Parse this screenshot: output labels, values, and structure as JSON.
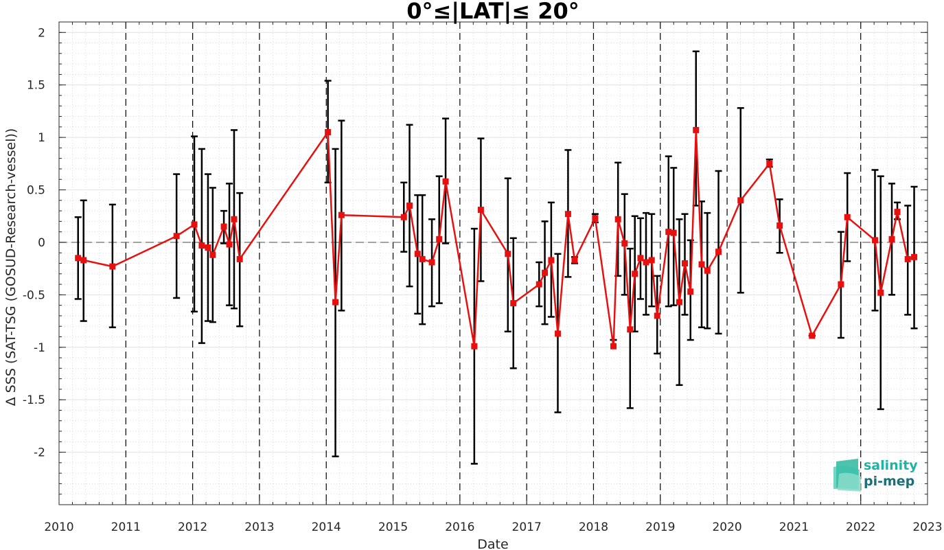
{
  "chart_data": {
    "type": "line",
    "title": "0°≤|LAT|≤ 20°",
    "xlabel": "Date",
    "ylabel": "Δ SSS (SAT-TSG (GOSUD-Research-vessel))",
    "xlim": [
      "2010",
      "2023"
    ],
    "ylim": [
      -2.5,
      2.1
    ],
    "x_ticks": [
      "2010",
      "2011",
      "2012",
      "2013",
      "2014",
      "2015",
      "2016",
      "2017",
      "2018",
      "2019",
      "2020",
      "2021",
      "2022",
      "2023"
    ],
    "y_ticks": [
      "-2",
      "-1.5",
      "-1",
      "-0.5",
      "0",
      "0.5",
      "1",
      "1.5",
      "2"
    ],
    "grid": "minor dotted grid on both axes",
    "year_boundaries": "dashed vertical lines at each year start",
    "zero_line": "dashed horizontal line at 0",
    "series": [
      {
        "color": "#e8100f",
        "marker": "square",
        "error_bar_color": "#000000",
        "x": [
          "2010-04-15",
          "2010-05-15",
          "2010-10-20",
          "2011-10-05",
          "2012-01-10",
          "2012-02-20",
          "2012-03-25",
          "2012-04-20",
          "2012-06-20",
          "2012-07-20",
          "2012-08-15",
          "2012-09-15",
          "2014-01-10",
          "2014-02-20",
          "2014-03-25",
          "2015-03-01",
          "2015-04-01",
          "2015-05-15",
          "2015-06-10",
          "2015-08-01",
          "2015-09-10",
          "2015-10-15",
          "2016-03-20",
          "2016-04-25",
          "2016-09-20",
          "2016-10-20",
          "2017-03-10",
          "2017-04-10",
          "2017-05-15",
          "2017-06-20",
          "2017-08-15",
          "2017-09-20",
          "2018-01-10",
          "2018-04-20",
          "2018-05-15",
          "2018-06-20",
          "2018-07-20",
          "2018-08-15",
          "2018-09-15",
          "2018-10-15",
          "2018-11-15",
          "2018-12-15",
          "2019-02-15",
          "2019-03-15",
          "2019-04-15",
          "2019-05-15",
          "2019-06-15",
          "2019-07-15",
          "2019-08-15",
          "2019-09-15",
          "2019-11-15",
          "2020-03-15",
          "2020-08-20",
          "2020-10-15",
          "2021-04-10",
          "2021-09-15",
          "2021-10-20",
          "2022-03-20",
          "2022-04-20",
          "2022-06-20",
          "2022-07-20",
          "2022-09-15",
          "2022-10-20"
        ],
        "y": [
          -0.15,
          -0.17,
          -0.23,
          0.06,
          0.17,
          -0.03,
          -0.05,
          -0.12,
          0.15,
          -0.02,
          0.22,
          -0.16,
          1.05,
          -0.57,
          0.26,
          0.24,
          0.35,
          -0.11,
          -0.16,
          -0.19,
          0.03,
          0.58,
          -0.99,
          0.31,
          -0.11,
          -0.58,
          -0.4,
          -0.29,
          -0.17,
          -0.87,
          0.27,
          -0.17,
          0.23,
          -0.99,
          0.22,
          -0.01,
          -0.83,
          -0.3,
          -0.15,
          -0.19,
          -0.17,
          -0.7,
          0.1,
          0.09,
          -0.57,
          -0.2,
          -0.47,
          1.07,
          -0.21,
          -0.27,
          -0.09,
          0.4,
          0.75,
          0.16,
          -0.89,
          -0.4,
          0.24,
          0.02,
          -0.48,
          0.03,
          0.29,
          -0.16,
          -0.14
        ],
        "err_low": [
          -0.54,
          -0.75,
          -0.81,
          -0.53,
          -0.66,
          -0.96,
          -0.75,
          -0.76,
          -0.01,
          -0.6,
          -0.63,
          -0.8,
          0.57,
          -2.04,
          -0.65,
          -0.09,
          -0.42,
          -0.68,
          -0.78,
          -0.61,
          -0.58,
          -0.01,
          -2.11,
          -0.37,
          -0.85,
          -1.2,
          -0.61,
          -0.78,
          -0.71,
          -1.62,
          -0.33,
          -0.2,
          0.19,
          -0.93,
          -0.32,
          -0.5,
          -1.58,
          -0.85,
          -0.54,
          -0.69,
          -0.61,
          -1.06,
          -0.61,
          -0.6,
          -1.36,
          -0.69,
          -0.93,
          0.35,
          -0.81,
          -0.82,
          -0.87,
          -0.48,
          0.72,
          -0.1,
          -0.89,
          -0.91,
          -0.18,
          -0.65,
          -1.59,
          -0.5,
          0.22,
          -0.69,
          -0.82
        ],
        "err_high": [
          0.24,
          0.4,
          0.36,
          0.65,
          1.01,
          0.89,
          0.65,
          0.52,
          0.3,
          0.56,
          1.07,
          0.47,
          1.54,
          0.89,
          1.16,
          0.57,
          1.12,
          0.45,
          0.45,
          0.22,
          0.63,
          1.18,
          0.13,
          0.99,
          0.61,
          0.04,
          -0.19,
          0.2,
          0.38,
          -0.11,
          0.88,
          -0.14,
          0.27,
          -0.93,
          0.76,
          0.46,
          -0.06,
          0.25,
          0.23,
          0.28,
          0.27,
          -0.32,
          0.82,
          0.71,
          0.22,
          0.27,
          0.02,
          1.82,
          0.39,
          0.28,
          0.68,
          1.28,
          0.79,
          0.41,
          -0.89,
          0.1,
          0.66,
          0.69,
          0.63,
          0.56,
          0.38,
          0.35,
          0.53
        ]
      }
    ]
  },
  "logo": {
    "line1": "salinity",
    "line2": "pi-mep",
    "color1": "#1fb3a3",
    "color2": "#1c6f78"
  }
}
